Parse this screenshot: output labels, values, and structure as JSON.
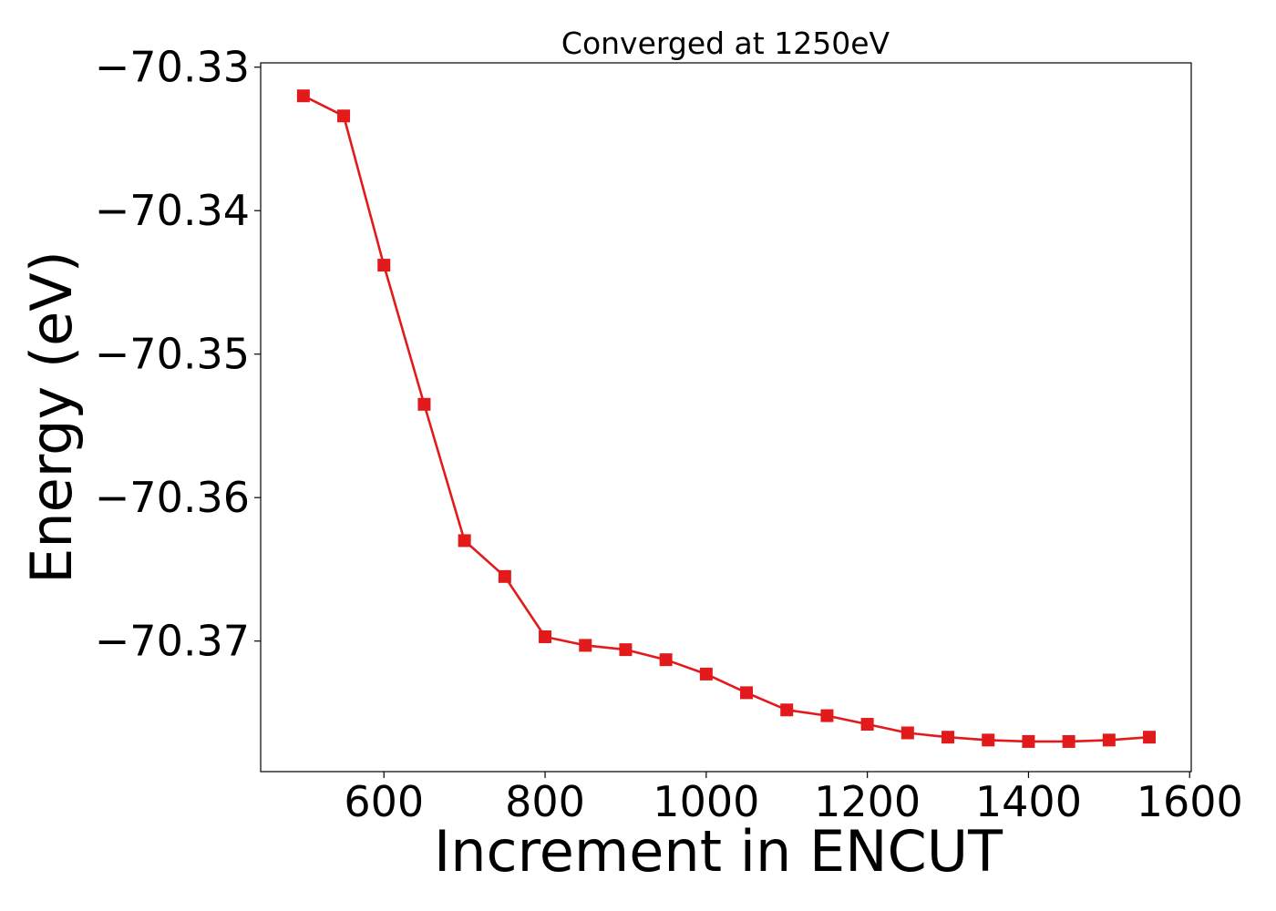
{
  "chart_data": {
    "type": "line",
    "title": "Converged at 1250eV",
    "xlabel": "Increment in ENCUT",
    "ylabel": "Energy (eV)",
    "xlim": [
      447,
      1602
    ],
    "ylim": [
      -70.3791,
      -70.3297
    ],
    "x_ticks": [
      600,
      800,
      1000,
      1200,
      1400,
      1600
    ],
    "x_tick_labels": [
      "600",
      "800",
      "1000",
      "1200",
      "1400",
      "1600"
    ],
    "y_ticks": [
      -70.33,
      -70.34,
      -70.35,
      -70.36,
      -70.37
    ],
    "y_tick_labels": [
      "−70.33",
      "−70.34",
      "−70.35",
      "−70.36",
      "−70.37"
    ],
    "grid": false,
    "legend": "none",
    "series": [
      {
        "color": "#e31a1c",
        "marker": "square",
        "x": [
          500,
          550,
          600,
          650,
          700,
          750,
          800,
          850,
          900,
          950,
          1000,
          1050,
          1100,
          1150,
          1200,
          1250,
          1300,
          1350,
          1400,
          1450,
          1500,
          1550
        ],
        "y": [
          -70.332,
          -70.3334,
          -70.3438,
          -70.3535,
          -70.363,
          -70.3655,
          -70.3697,
          -70.3703,
          -70.3706,
          -70.3713,
          -70.3723,
          -70.3736,
          -70.3748,
          -70.3752,
          -70.3758,
          -70.3764,
          -70.3767,
          -70.3769,
          -70.377,
          -70.377,
          -70.3769,
          -70.3767
        ]
      }
    ]
  }
}
